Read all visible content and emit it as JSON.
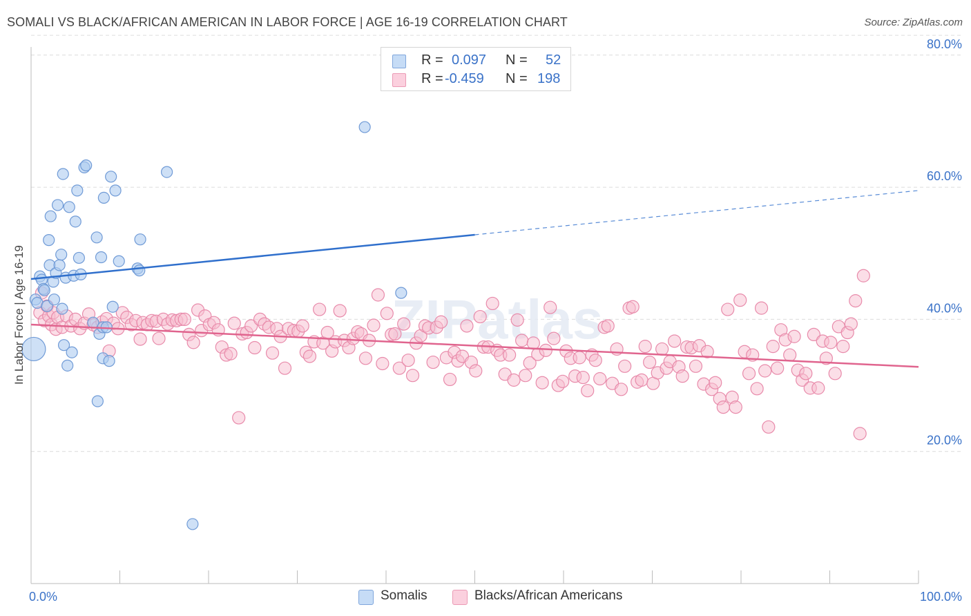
{
  "title": "SOMALI VS BLACK/AFRICAN AMERICAN IN LABOR FORCE | AGE 16-19 CORRELATION CHART",
  "source": "Source: ZipAtlas.com",
  "watermark": "ZIPatlas",
  "legend": {
    "rows": [
      {
        "r_label": "R =",
        "r_value": "0.097",
        "n_label": "N =",
        "n_value": "52"
      },
      {
        "r_label": "R =",
        "r_value": "-0.459",
        "n_label": "N =",
        "n_value": "198"
      }
    ]
  },
  "bottom_legend": {
    "series1": "Somalis",
    "series2": "Blacks/African Americans"
  },
  "colors": {
    "somali_fill": "#aecbf0",
    "somali_stroke": "#6f9ad6",
    "somali_line": "#2f6fcc",
    "black_fill": "#f7bdd0",
    "black_stroke": "#e88aaa",
    "black_line": "#e0648e",
    "axis_label": "#3a72c8",
    "grid": "#dcdcdc"
  },
  "chart_data": {
    "type": "scatter",
    "title": "SOMALI VS BLACK/AFRICAN AMERICAN IN LABOR FORCE | AGE 16-19 CORRELATION CHART",
    "xlabel": "",
    "ylabel": "In Labor Force | Age 16-19",
    "xlim": [
      0,
      100
    ],
    "ylim": [
      0,
      83
    ],
    "x_tick_labels": [
      "0.0%",
      "100.0%"
    ],
    "y_ticks": [
      20,
      40,
      60,
      80
    ],
    "y_tick_labels": [
      "20.0%",
      "40.0%",
      "60.0%",
      "80.0%"
    ],
    "series": [
      {
        "name": "Somalis",
        "R": 0.097,
        "N": 52,
        "trend": {
          "x0": 0,
          "y0": 46.1,
          "x1": 50,
          "y1": 52.8,
          "x_dash_end": 100,
          "y_dash_end": 59.5
        },
        "points": [
          [
            0.3,
            35.5
          ],
          [
            0.5,
            43.0
          ],
          [
            0.7,
            42.5
          ],
          [
            1.0,
            46.5
          ],
          [
            1.2,
            46.0
          ],
          [
            1.4,
            44.6
          ],
          [
            1.5,
            44.4
          ],
          [
            1.8,
            42.0
          ],
          [
            2.0,
            52.0
          ],
          [
            2.1,
            48.2
          ],
          [
            2.2,
            55.6
          ],
          [
            2.5,
            45.7
          ],
          [
            2.6,
            43.0
          ],
          [
            2.8,
            47.0
          ],
          [
            3.0,
            57.3
          ],
          [
            3.2,
            48.2
          ],
          [
            3.4,
            49.8
          ],
          [
            3.5,
            41.6
          ],
          [
            3.6,
            62.0
          ],
          [
            3.7,
            36.1
          ],
          [
            3.9,
            46.3
          ],
          [
            4.1,
            33.0
          ],
          [
            4.3,
            57.0
          ],
          [
            4.6,
            35.0
          ],
          [
            4.8,
            46.6
          ],
          [
            5.0,
            54.8
          ],
          [
            5.2,
            59.5
          ],
          [
            5.4,
            49.3
          ],
          [
            5.6,
            46.8
          ],
          [
            6.0,
            63.0
          ],
          [
            6.2,
            63.3
          ],
          [
            7.0,
            39.5
          ],
          [
            7.4,
            52.4
          ],
          [
            7.5,
            27.6
          ],
          [
            7.7,
            37.8
          ],
          [
            7.9,
            49.4
          ],
          [
            8.1,
            38.8
          ],
          [
            8.1,
            34.1
          ],
          [
            8.2,
            58.4
          ],
          [
            8.5,
            38.8
          ],
          [
            8.8,
            33.7
          ],
          [
            9.0,
            61.6
          ],
          [
            9.2,
            41.9
          ],
          [
            9.5,
            59.5
          ],
          [
            9.9,
            48.8
          ],
          [
            12.0,
            47.7
          ],
          [
            12.2,
            47.4
          ],
          [
            12.3,
            52.1
          ],
          [
            15.3,
            62.3
          ],
          [
            18.2,
            9.0
          ],
          [
            37.6,
            69.1
          ],
          [
            41.7,
            44.0
          ]
        ]
      },
      {
        "name": "Blacks/African Americans",
        "R": -0.459,
        "N": 198,
        "trend": {
          "x0": 0,
          "y0": 39.2,
          "x1": 100,
          "y1": 32.8
        },
        "points": [
          [
            1.0,
            41.0
          ],
          [
            1.2,
            44.0
          ],
          [
            1.5,
            39.8
          ],
          [
            1.8,
            42.0
          ],
          [
            2.0,
            40.5
          ],
          [
            2.3,
            39.2
          ],
          [
            2.5,
            41.0
          ],
          [
            2.8,
            38.5
          ],
          [
            3.0,
            40.3
          ],
          [
            3.5,
            38.8
          ],
          [
            4.0,
            40.5
          ],
          [
            4.5,
            39.0
          ],
          [
            5.0,
            40.0
          ],
          [
            5.5,
            38.6
          ],
          [
            6.0,
            39.4
          ],
          [
            6.5,
            40.8
          ],
          [
            7.0,
            39.2
          ],
          [
            7.5,
            38.8
          ],
          [
            8.0,
            39.6
          ],
          [
            8.5,
            40.1
          ],
          [
            8.8,
            35.2
          ],
          [
            9.3,
            39.4
          ],
          [
            9.8,
            38.6
          ],
          [
            10.3,
            41.0
          ],
          [
            10.8,
            40.3
          ],
          [
            11.3,
            39.2
          ],
          [
            11.8,
            39.8
          ],
          [
            12.3,
            37.0
          ],
          [
            12.6,
            39.5
          ],
          [
            13.1,
            39.2
          ],
          [
            13.6,
            39.8
          ],
          [
            14.1,
            39.7
          ],
          [
            14.4,
            37.1
          ],
          [
            14.9,
            40.0
          ],
          [
            15.4,
            39.3
          ],
          [
            15.9,
            39.9
          ],
          [
            16.4,
            39.8
          ],
          [
            16.9,
            40.0
          ],
          [
            17.3,
            40.0
          ],
          [
            17.8,
            37.7
          ],
          [
            18.3,
            36.5
          ],
          [
            18.8,
            41.4
          ],
          [
            19.2,
            38.3
          ],
          [
            19.6,
            40.5
          ],
          [
            20.1,
            39.2
          ],
          [
            20.6,
            39.5
          ],
          [
            21.1,
            38.4
          ],
          [
            21.5,
            35.8
          ],
          [
            22.0,
            34.6
          ],
          [
            22.5,
            34.8
          ],
          [
            22.9,
            39.4
          ],
          [
            23.4,
            25.1
          ],
          [
            23.8,
            37.8
          ],
          [
            24.3,
            38.0
          ],
          [
            24.8,
            39.0
          ],
          [
            25.2,
            35.7
          ],
          [
            25.8,
            40.0
          ],
          [
            26.3,
            39.3
          ],
          [
            26.8,
            38.8
          ],
          [
            27.2,
            34.9
          ],
          [
            27.7,
            38.6
          ],
          [
            28.1,
            37.4
          ],
          [
            28.6,
            32.6
          ],
          [
            29.0,
            38.6
          ],
          [
            29.6,
            38.3
          ],
          [
            30.1,
            38.2
          ],
          [
            30.6,
            39.0
          ],
          [
            31.0,
            35.0
          ],
          [
            31.4,
            34.4
          ],
          [
            31.9,
            36.6
          ],
          [
            32.5,
            41.5
          ],
          [
            32.9,
            36.4
          ],
          [
            33.4,
            38.0
          ],
          [
            33.9,
            35.2
          ],
          [
            34.3,
            36.6
          ],
          [
            34.8,
            41.3
          ],
          [
            35.3,
            36.8
          ],
          [
            35.8,
            35.7
          ],
          [
            36.3,
            37.1
          ],
          [
            36.8,
            38.1
          ],
          [
            37.2,
            37.8
          ],
          [
            37.7,
            34.1
          ],
          [
            38.1,
            36.8
          ],
          [
            38.6,
            39.1
          ],
          [
            39.1,
            43.7
          ],
          [
            39.6,
            33.3
          ],
          [
            40.1,
            40.9
          ],
          [
            40.6,
            37.7
          ],
          [
            41.0,
            37.8
          ],
          [
            41.5,
            32.6
          ],
          [
            42.0,
            39.3
          ],
          [
            42.5,
            33.8
          ],
          [
            43.0,
            31.5
          ],
          [
            43.4,
            36.4
          ],
          [
            43.9,
            37.5
          ],
          [
            44.4,
            39.0
          ],
          [
            44.8,
            38.7
          ],
          [
            45.3,
            33.5
          ],
          [
            45.7,
            38.8
          ],
          [
            46.2,
            39.6
          ],
          [
            46.8,
            34.2
          ],
          [
            47.2,
            30.9
          ],
          [
            47.7,
            35.0
          ],
          [
            48.1,
            33.7
          ],
          [
            48.6,
            34.4
          ],
          [
            49.1,
            39.0
          ],
          [
            49.6,
            33.5
          ],
          [
            50.1,
            32.2
          ],
          [
            50.6,
            40.4
          ],
          [
            51.0,
            35.8
          ],
          [
            51.5,
            35.8
          ],
          [
            52.0,
            42.4
          ],
          [
            52.5,
            35.3
          ],
          [
            52.9,
            34.6
          ],
          [
            53.4,
            31.7
          ],
          [
            53.9,
            34.6
          ],
          [
            54.4,
            30.8
          ],
          [
            54.8,
            39.9
          ],
          [
            55.3,
            36.8
          ],
          [
            55.7,
            31.5
          ],
          [
            56.2,
            33.4
          ],
          [
            56.6,
            36.4
          ],
          [
            57.1,
            34.7
          ],
          [
            57.6,
            30.4
          ],
          [
            58.0,
            35.3
          ],
          [
            58.5,
            41.8
          ],
          [
            58.9,
            37.1
          ],
          [
            59.4,
            30.0
          ],
          [
            59.9,
            30.6
          ],
          [
            60.3,
            35.2
          ],
          [
            60.8,
            34.1
          ],
          [
            61.3,
            31.4
          ],
          [
            61.8,
            34.2
          ],
          [
            62.2,
            31.2
          ],
          [
            62.7,
            29.2
          ],
          [
            63.2,
            34.6
          ],
          [
            63.6,
            33.8
          ],
          [
            64.1,
            31.0
          ],
          [
            64.6,
            38.8
          ],
          [
            65.0,
            39.0
          ],
          [
            65.5,
            30.3
          ],
          [
            66.0,
            35.5
          ],
          [
            66.5,
            29.4
          ],
          [
            66.9,
            32.9
          ],
          [
            67.4,
            41.7
          ],
          [
            67.8,
            41.9
          ],
          [
            68.3,
            30.5
          ],
          [
            68.8,
            30.8
          ],
          [
            69.2,
            35.9
          ],
          [
            69.7,
            33.5
          ],
          [
            70.1,
            30.3
          ],
          [
            70.6,
            31.9
          ],
          [
            71.1,
            35.5
          ],
          [
            71.6,
            32.6
          ],
          [
            72.0,
            33.6
          ],
          [
            72.5,
            36.7
          ],
          [
            73.0,
            32.8
          ],
          [
            73.4,
            31.4
          ],
          [
            73.9,
            35.8
          ],
          [
            74.4,
            35.7
          ],
          [
            74.9,
            32.9
          ],
          [
            75.3,
            36.0
          ],
          [
            75.8,
            30.2
          ],
          [
            76.2,
            35.1
          ],
          [
            76.7,
            29.4
          ],
          [
            77.1,
            30.4
          ],
          [
            77.6,
            28.0
          ],
          [
            78.0,
            26.7
          ],
          [
            78.5,
            41.5
          ],
          [
            79.0,
            28.2
          ],
          [
            79.4,
            26.7
          ],
          [
            79.9,
            42.9
          ],
          [
            80.4,
            35.1
          ],
          [
            80.9,
            31.8
          ],
          [
            81.3,
            34.6
          ],
          [
            81.8,
            29.5
          ],
          [
            82.3,
            41.7
          ],
          [
            82.7,
            32.2
          ],
          [
            83.1,
            23.7
          ],
          [
            83.6,
            35.9
          ],
          [
            84.1,
            32.6
          ],
          [
            84.5,
            38.4
          ],
          [
            85.0,
            36.9
          ],
          [
            85.5,
            34.6
          ],
          [
            86.0,
            37.4
          ],
          [
            86.4,
            32.3
          ],
          [
            86.9,
            30.8
          ],
          [
            87.3,
            31.8
          ],
          [
            87.8,
            29.6
          ],
          [
            88.2,
            37.7
          ],
          [
            88.7,
            29.6
          ],
          [
            89.2,
            36.7
          ],
          [
            89.6,
            34.1
          ],
          [
            90.1,
            36.5
          ],
          [
            90.6,
            31.8
          ],
          [
            91.0,
            38.9
          ],
          [
            91.5,
            35.9
          ],
          [
            92.0,
            38.0
          ],
          [
            92.4,
            39.3
          ],
          [
            92.9,
            42.8
          ],
          [
            93.4,
            22.7
          ],
          [
            93.8,
            46.6
          ]
        ]
      }
    ]
  }
}
